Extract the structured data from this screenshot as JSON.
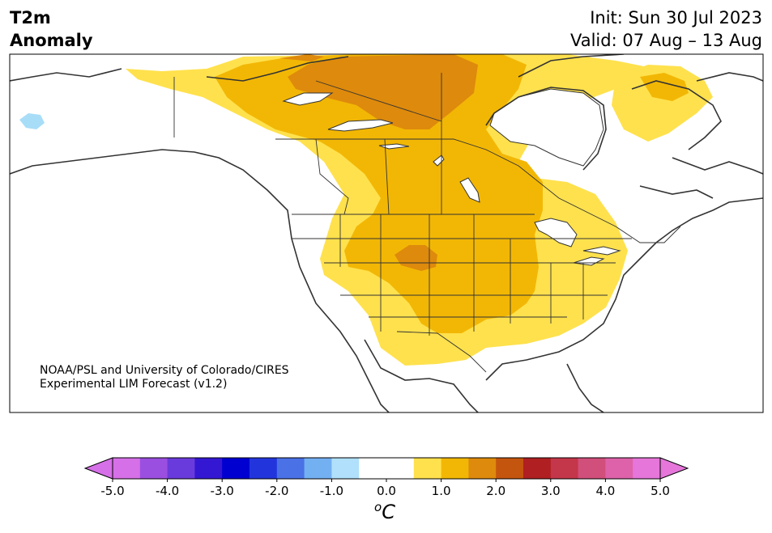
{
  "title": {
    "line1": "T2m",
    "line2": "Anomaly"
  },
  "dates": {
    "init": "Init: Sun 30 Jul 2023",
    "valid": "Valid: 07 Aug – 13 Aug"
  },
  "credit": {
    "line1": "NOAA/PSL and University of Colorado/CIRES",
    "line2": "Experimental LIM Forecast (v1.2)"
  },
  "colorbar": {
    "ticks": [
      "-5.0",
      "-4.0",
      "-3.0",
      "-2.0",
      "-1.0",
      "0.0",
      "1.0",
      "2.0",
      "3.0",
      "4.0",
      "5.0"
    ],
    "unit_sup": "o",
    "unit_main": "C",
    "colors": [
      "#d670e8",
      "#9a4fe0",
      "#6a3bdc",
      "#3417d2",
      "#0000d0",
      "#2235dc",
      "#4a71e6",
      "#73b0f2",
      "#b0e0fb",
      "#ffffff",
      "#ffffff",
      "#ffe14d",
      "#f2b705",
      "#de8a0c",
      "#c4550e",
      "#b01f22",
      "#c4364a",
      "#d14f7b",
      "#dd62a9",
      "#e676da"
    ]
  },
  "legend_colors": {
    "anom_0_5_1": "#ffe14d",
    "anom_1_1_5": "#f2b705",
    "anom_1_5_2": "#de8a0c",
    "cold_light": "#a8ddf8",
    "coast": "#333333"
  }
}
